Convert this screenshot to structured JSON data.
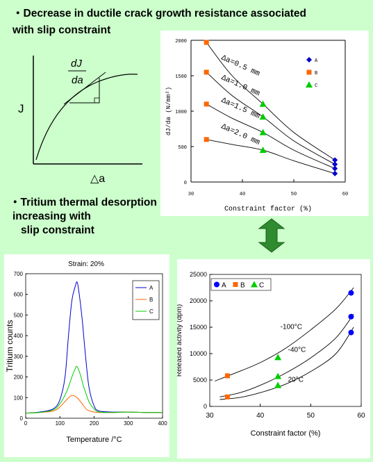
{
  "headings": {
    "top_line1": "・Decrease in ductile crack growth resistance associated",
    "top_line2": "with slip constraint",
    "mid_line1": "・Tritium thermal desorption",
    "mid_line2": "increasing with",
    "mid_line3": "slip constraint"
  },
  "schematic": {
    "y_label": "J",
    "x_label": "△a",
    "slope_num": "dJ",
    "slope_den": "da"
  },
  "chart_data": [
    {
      "id": "djda",
      "type": "scatter",
      "xlabel": "Constraint factor (%)",
      "ylabel": "dJ/da (N/mm²)",
      "xlim": [
        30,
        60
      ],
      "ylim": [
        0,
        2000
      ],
      "xticks": [
        30,
        40,
        50,
        60
      ],
      "yticks": [
        0,
        500,
        1000,
        1500,
        2000
      ],
      "series": [
        {
          "name": "A",
          "color": "#0000cc",
          "marker": "diamond",
          "x": [
            58,
            58,
            58,
            58
          ],
          "y": [
            310,
            250,
            190,
            120
          ]
        },
        {
          "name": "B",
          "color": "#ff6600",
          "marker": "square",
          "x": [
            33,
            33,
            33,
            33
          ],
          "y": [
            1970,
            1550,
            1100,
            600
          ]
        },
        {
          "name": "C",
          "color": "#00cc00",
          "marker": "triangle",
          "x": [
            44,
            44,
            44,
            44
          ],
          "y": [
            1100,
            920,
            700,
            450
          ]
        }
      ],
      "curves": [
        {
          "label": "Δa=0.5 mm",
          "x": [
            33,
            38,
            44,
            50,
            58
          ],
          "y": [
            1970,
            1500,
            1100,
            700,
            310
          ]
        },
        {
          "label": "Δa=1.0 mm",
          "x": [
            33,
            38,
            44,
            50,
            58
          ],
          "y": [
            1550,
            1220,
            920,
            580,
            250
          ]
        },
        {
          "label": "Δa=1.5 mm",
          "x": [
            33,
            38,
            44,
            50,
            58
          ],
          "y": [
            1100,
            900,
            700,
            450,
            190
          ]
        },
        {
          "label": "Δa=2.0 mm",
          "x": [
            33,
            38,
            44,
            50,
            58
          ],
          "y": [
            600,
            530,
            450,
            300,
            120
          ]
        }
      ]
    },
    {
      "id": "tds",
      "type": "line",
      "title": "Strain: 20%",
      "xlabel": "Temperature /°C",
      "ylabel": "Tritium counts",
      "xlim": [
        0,
        400
      ],
      "ylim": [
        0,
        700
      ],
      "xticks": [
        0,
        100,
        200,
        300,
        400
      ],
      "yticks": [
        0,
        100,
        200,
        300,
        400,
        500,
        600,
        700
      ],
      "series": [
        {
          "name": "A",
          "color": "#0000cc",
          "x": [
            0,
            40,
            80,
            100,
            115,
            125,
            135,
            145,
            150,
            155,
            165,
            175,
            185,
            200,
            215,
            260,
            300,
            350,
            400
          ],
          "y": [
            25,
            30,
            45,
            90,
            200,
            400,
            570,
            640,
            660,
            620,
            480,
            300,
            150,
            60,
            35,
            30,
            30,
            28,
            28
          ]
        },
        {
          "name": "B",
          "color": "#ff6600",
          "x": [
            0,
            40,
            80,
            100,
            120,
            135,
            150,
            165,
            180,
            200,
            215,
            260,
            300,
            350,
            400
          ],
          "y": [
            25,
            28,
            35,
            55,
            90,
            110,
            100,
            70,
            40,
            30,
            28,
            28,
            30,
            28,
            28
          ]
        },
        {
          "name": "C",
          "color": "#00cc00",
          "x": [
            0,
            40,
            80,
            100,
            120,
            135,
            145,
            150,
            160,
            170,
            185,
            200,
            215,
            260,
            300,
            350,
            400
          ],
          "y": [
            25,
            28,
            40,
            70,
            130,
            200,
            240,
            250,
            210,
            150,
            80,
            45,
            30,
            28,
            30,
            28,
            28
          ]
        }
      ]
    },
    {
      "id": "activity",
      "type": "scatter",
      "xlabel": "Constraint factor (%)",
      "ylabel": "Released activity (dpm)",
      "xlim": [
        30,
        60
      ],
      "ylim": [
        0,
        25000
      ],
      "xticks": [
        30,
        40,
        50,
        60
      ],
      "yticks": [
        0,
        5000,
        10000,
        15000,
        20000,
        25000
      ],
      "series": [
        {
          "name": "A",
          "color": "#0000ff",
          "marker": "circle",
          "x": [
            58,
            58,
            58
          ],
          "y": [
            21500,
            17000,
            14000
          ]
        },
        {
          "name": "B",
          "color": "#ff6600",
          "marker": "square",
          "x": [
            33.5,
            33.5
          ],
          "y": [
            5800,
            1800
          ]
        },
        {
          "name": "C",
          "color": "#00cc00",
          "marker": "triangle",
          "x": [
            43.5,
            43.5,
            43.5
          ],
          "y": [
            9300,
            5700,
            4000
          ]
        }
      ],
      "curves": [
        {
          "label": "-100°C",
          "x": [
            31,
            35,
            40,
            45,
            50,
            55,
            58.5
          ],
          "y": [
            4800,
            6300,
            8300,
            11000,
            14500,
            18500,
            22500
          ]
        },
        {
          "label": "-40°C",
          "x": [
            32,
            36,
            40,
            45,
            50,
            55,
            58.5
          ],
          "y": [
            1800,
            2600,
            4000,
            6300,
            9200,
            13000,
            17500
          ]
        },
        {
          "label": "20°C",
          "x": [
            32,
            36,
            40,
            45,
            50,
            55,
            58.5
          ],
          "y": [
            1300,
            1700,
            2600,
            4200,
            6600,
            10000,
            15000
          ]
        }
      ]
    }
  ]
}
